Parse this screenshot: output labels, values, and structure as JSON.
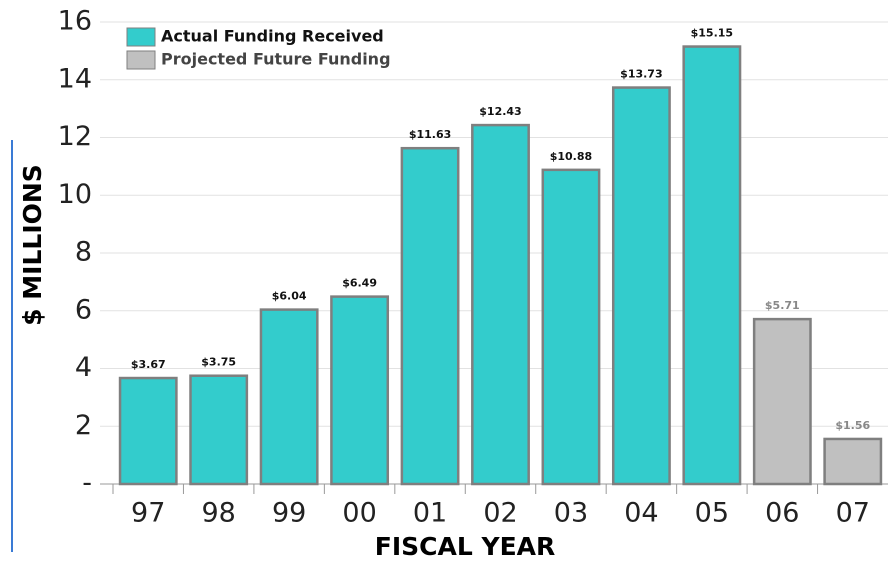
{
  "chart_data": {
    "type": "bar",
    "xlabel": "FISCAL YEAR",
    "ylabel": "$ MILLIONS",
    "categories": [
      "97",
      "98",
      "99",
      "00",
      "01",
      "02",
      "03",
      "04",
      "05",
      "06",
      "07"
    ],
    "series": [
      {
        "name": "Actual Funding Received",
        "color": "#33cccc",
        "values": [
          3.67,
          3.75,
          6.04,
          6.49,
          11.63,
          12.43,
          10.88,
          13.73,
          15.15,
          null,
          null
        ],
        "value_labels": [
          "$3.67",
          "$3.75",
          "$6.04",
          "$6.49",
          "$11.63",
          "$12.43",
          "$10.88",
          "$13.73",
          "$15.15",
          null,
          null
        ]
      },
      {
        "name": "Projected Future Funding",
        "color": "#c0c0c0",
        "values": [
          null,
          null,
          null,
          null,
          null,
          null,
          null,
          null,
          null,
          5.71,
          1.56
        ],
        "value_labels": [
          null,
          null,
          null,
          null,
          null,
          null,
          null,
          null,
          null,
          "$5.71",
          "$1.56"
        ]
      }
    ],
    "ylim": [
      0,
      16
    ],
    "yticks": [
      {
        "value": 0,
        "label": "-"
      },
      2,
      4,
      6,
      8,
      10,
      12,
      14,
      16
    ],
    "grid": true,
    "legend": "upper left"
  }
}
